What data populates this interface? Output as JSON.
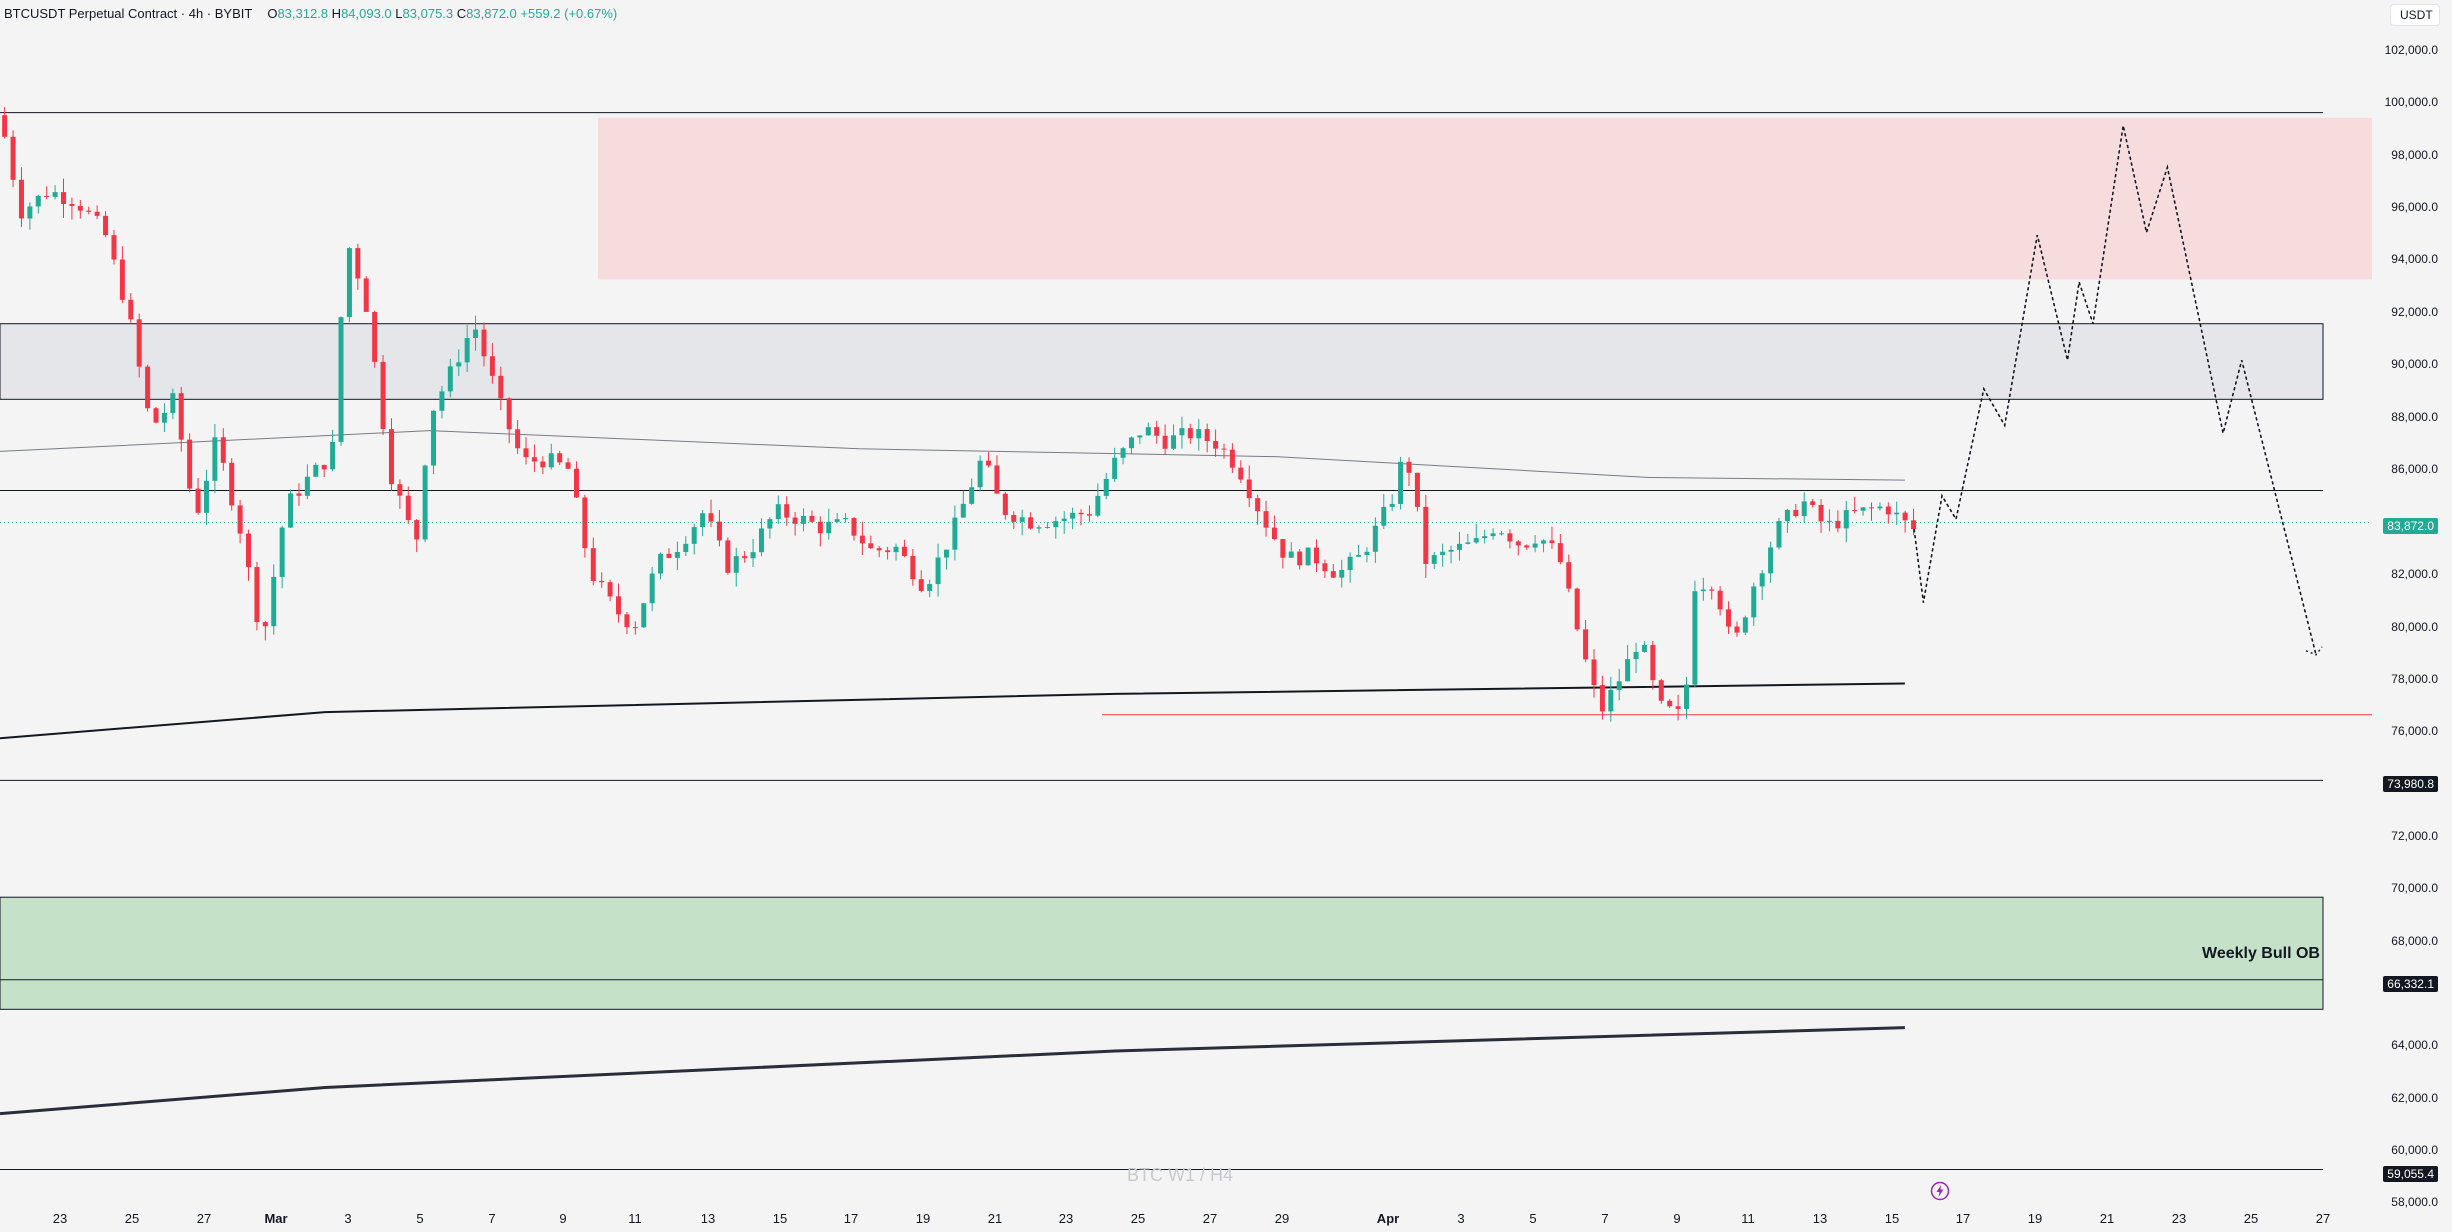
{
  "header": {
    "symbol": "BTCUSDT Perpetual Contract · 4h · BYBIT",
    "open_label": "O",
    "open": "83,312.8",
    "high_label": "H",
    "high": "84,093.0",
    "low_label": "L",
    "low": "83,075.3",
    "close_label": "C",
    "close": "83,872.0",
    "change": "+559.2 (+0.67%)"
  },
  "currency_button": "USDT",
  "y_axis": {
    "labels": [
      "102,000.0",
      "100,000.0",
      "98,000.0",
      "96,000.0",
      "94,000.0",
      "92,000.0",
      "90,000.0",
      "88,000.0",
      "86,000.0",
      "82,000.0",
      "80,000.0",
      "78,000.0",
      "76,000.0",
      "72,000.0",
      "70,000.0",
      "68,000.0",
      "64,000.0",
      "62,000.0",
      "60,000.0",
      "58,000.0"
    ]
  },
  "price_tags": {
    "last_price": "83,872.0",
    "level_1": "73,980.8",
    "level_2": "66,332.1",
    "level_3": "59,055.4"
  },
  "x_axis": {
    "labels": [
      "23",
      "25",
      "27",
      "Mar",
      "3",
      "5",
      "7",
      "9",
      "11",
      "13",
      "15",
      "17",
      "19",
      "21",
      "23",
      "25",
      "27",
      "29",
      "Apr",
      "3",
      "5",
      "7",
      "9",
      "11",
      "13",
      "15",
      "17",
      "19",
      "21",
      "23",
      "25",
      "27"
    ]
  },
  "annotations": {
    "weekly_bull_ob": "Weekly Bull OB",
    "watermark": "BTC W1 / H4"
  },
  "colors": {
    "background": "#f4f4f4",
    "bull": "#22ab94",
    "bear": "#f23645",
    "supply_zone": "#f6dcdc",
    "gray_zone": "#e5e6ea",
    "demand_zone": "#c5e2c8",
    "price_tag_black": "#131722"
  },
  "icons": [
    "lightning-icon"
  ],
  "chart_data": {
    "type": "candlestick",
    "symbol": "BTCUSDT",
    "interval": "4h",
    "x_range": [
      "Feb 21",
      "Apr 27"
    ],
    "ylim": [
      58000,
      102000
    ],
    "zones": [
      {
        "kind": "supply",
        "color": "#f6dcdc",
        "from": 93200,
        "to": 99400,
        "start_x": "Mar 10"
      },
      {
        "kind": "gray",
        "color": "#e5e6ea",
        "from": 88600,
        "to": 91500
      },
      {
        "kind": "demand",
        "name": "Weekly Bull OB",
        "color": "#c5e2c8",
        "from": 65200,
        "to": 69500
      }
    ],
    "horizontal_levels": [
      99600,
      85100,
      73980.8,
      66332.1,
      59055.4
    ],
    "red_level": 76500,
    "last_price": 83872.0,
    "moving_averages": [
      {
        "points": [
          [
            0,
            86600
          ],
          [
            18.5,
            87400
          ],
          [
            37,
            86700
          ],
          [
            55,
            86400
          ],
          [
            71,
            85600
          ],
          [
            82,
            85500
          ]
        ]
      },
      {
        "points": [
          [
            0,
            75600
          ],
          [
            14,
            76600
          ],
          [
            48,
            77300
          ],
          [
            82,
            77700
          ]
        ]
      },
      {
        "points": [
          [
            0,
            61200
          ],
          [
            14,
            62200
          ],
          [
            48,
            63600
          ],
          [
            82,
            64500
          ]
        ]
      }
    ],
    "candles_ohlc_path": [
      [
        0,
        99500
      ],
      [
        0.9,
        95800
      ],
      [
        2.1,
        96600
      ],
      [
        3.3,
        96200
      ],
      [
        4.5,
        95000
      ],
      [
        5.5,
        92000
      ],
      [
        6.5,
        87500
      ],
      [
        7.5,
        88600
      ],
      [
        8.4,
        84000
      ],
      [
        9.3,
        87000
      ],
      [
        10.3,
        83800
      ],
      [
        11.3,
        79300
      ],
      [
        12.3,
        84500
      ],
      [
        13.3,
        85600
      ],
      [
        14.3,
        86500
      ],
      [
        14.9,
        94800
      ],
      [
        15.7,
        92600
      ],
      [
        16.8,
        85800
      ],
      [
        17.9,
        83000
      ],
      [
        18.5,
        88000
      ],
      [
        19.5,
        89800
      ],
      [
        20.4,
        91500
      ],
      [
        21.6,
        88200
      ],
      [
        22.5,
        86200
      ],
      [
        23.5,
        86300
      ],
      [
        24.5,
        85900
      ],
      [
        25.4,
        82000
      ],
      [
        26.5,
        80500
      ],
      [
        27.3,
        79900
      ],
      [
        28.3,
        82300
      ],
      [
        29.3,
        83100
      ],
      [
        30.3,
        84300
      ],
      [
        31.3,
        82200
      ],
      [
        32.3,
        82800
      ],
      [
        33.4,
        84300
      ],
      [
        34.5,
        84000
      ],
      [
        35.3,
        83700
      ],
      [
        36.5,
        83800
      ],
      [
        37.5,
        82800
      ],
      [
        38.6,
        82900
      ],
      [
        39.8,
        81400
      ],
      [
        41,
        83500
      ],
      [
        42.3,
        86400
      ],
      [
        43.1,
        84400
      ],
      [
        44.4,
        83900
      ],
      [
        45.6,
        84000
      ],
      [
        46.9,
        84300
      ],
      [
        48,
        86200
      ],
      [
        49.2,
        87500
      ],
      [
        50.2,
        87000
      ],
      [
        51.3,
        87300
      ],
      [
        52.4,
        86900
      ],
      [
        53.3,
        86000
      ],
      [
        54.4,
        84000
      ],
      [
        55.4,
        82500
      ],
      [
        56.5,
        82600
      ],
      [
        57.6,
        81900
      ],
      [
        58.6,
        82600
      ],
      [
        59.9,
        84700
      ],
      [
        60.5,
        86700
      ],
      [
        61.4,
        82300
      ],
      [
        62.5,
        82800
      ],
      [
        63.6,
        83100
      ],
      [
        64.4,
        83800
      ],
      [
        65.5,
        83000
      ],
      [
        66.2,
        83400
      ],
      [
        67.1,
        82600
      ],
      [
        68.2,
        78700
      ],
      [
        68.9,
        76600
      ],
      [
        69.8,
        78000
      ],
      [
        70.6,
        79500
      ],
      [
        71.4,
        76800
      ],
      [
        72.5,
        76400
      ],
      [
        72.9,
        81500
      ],
      [
        73.8,
        81600
      ],
      [
        74.6,
        79000
      ],
      [
        75.5,
        81500
      ],
      [
        76.5,
        83600
      ],
      [
        77.6,
        84700
      ],
      [
        78.6,
        83700
      ],
      [
        79.8,
        84200
      ],
      [
        81.2,
        84500
      ],
      [
        81.9,
        83900
      ],
      [
        82.4,
        83600
      ]
    ],
    "projection_path": [
      [
        82.4,
        83600
      ],
      [
        82.8,
        80800
      ],
      [
        83.6,
        84900
      ],
      [
        84.2,
        84000
      ],
      [
        85.4,
        89000
      ],
      [
        86.3,
        87600
      ],
      [
        87.7,
        94900
      ],
      [
        89,
        90100
      ],
      [
        89.5,
        93100
      ],
      [
        90.1,
        91500
      ],
      [
        91.4,
        99100
      ],
      [
        92.4,
        95000
      ],
      [
        93.3,
        97500
      ],
      [
        95.7,
        87300
      ],
      [
        96.5,
        90100
      ],
      [
        99.7,
        78800
      ]
    ]
  }
}
